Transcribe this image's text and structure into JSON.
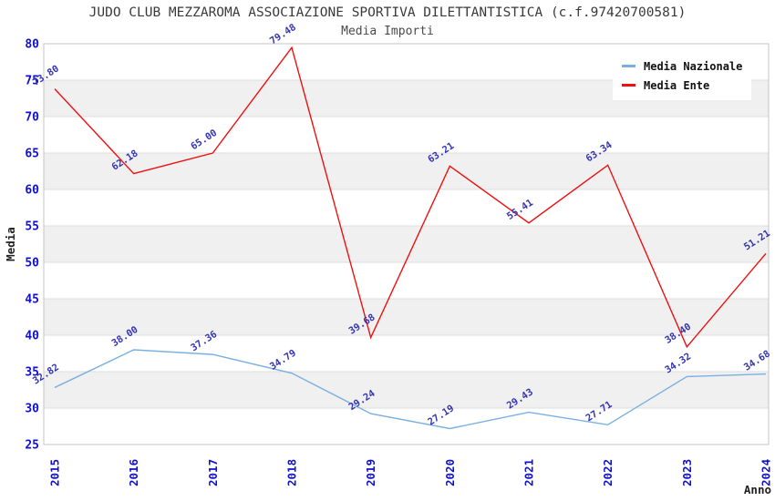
{
  "title": "JUDO CLUB MEZZAROMA ASSOCIAZIONE SPORTIVA DILETTANTISTICA (c.f.97420700581)",
  "subtitle": "Media Importi",
  "legend": {
    "items": [
      {
        "label": "Media Nazionale",
        "color": "#7ab0e0"
      },
      {
        "label": "Media Ente",
        "color": "#ee1111"
      }
    ]
  },
  "chart_data": {
    "type": "line",
    "title": "JUDO CLUB MEZZAROMA ASSOCIAZIONE SPORTIVA DILETTANTISTICA (c.f.97420700581)",
    "subtitle": "Media Importi",
    "xlabel": "Anno",
    "ylabel": "Media",
    "x": [
      "2015",
      "2016",
      "2017",
      "2018",
      "2019",
      "2020",
      "2021",
      "2022",
      "2023",
      "2024"
    ],
    "series": [
      {
        "name": "Media Nazionale",
        "color": "#7ab0e0",
        "values": [
          32.82,
          38.0,
          37.36,
          34.79,
          29.24,
          27.19,
          29.43,
          27.71,
          34.32,
          34.68
        ]
      },
      {
        "name": "Media Ente",
        "color": "#ee1111",
        "values": [
          73.8,
          62.18,
          65.0,
          79.48,
          39.68,
          63.21,
          55.41,
          63.34,
          38.4,
          51.21
        ]
      }
    ],
    "ylim": [
      25,
      80
    ],
    "ytick_step": 5,
    "grid": true,
    "legend_position": "top-right",
    "point_labels_decimals": 2,
    "colors": {
      "tick_label": "#1111cc",
      "point_label": "#3434b4",
      "band": "#f0f0f0",
      "gridline": "#dedede",
      "border": "#c4c4c4",
      "axis_title": "#222222"
    }
  }
}
